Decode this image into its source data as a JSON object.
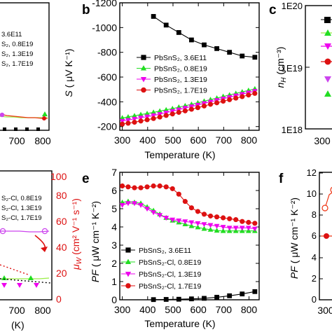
{
  "colors": {
    "black": "#000000",
    "green": "#22dd22",
    "magenta": "#ee00ee",
    "red": "#dd1111",
    "violet": "#cc44ee",
    "light_green": "#99ee44",
    "orange_red": "#ee3311"
  },
  "panels": {
    "a": {
      "x_ticks": [
        "700",
        "800"
      ],
      "legend": [
        "3.6E11",
        "S₂, 0.8E19",
        "S₂, 1.3E19",
        "S₂, 1.7E19"
      ]
    },
    "b": {
      "letter": "b",
      "ylabel_var": "S",
      "ylabel_unit": " ( μV K⁻¹)",
      "xlabel": "Temperature (K)"
    },
    "c": {
      "letter": "c",
      "ylabel_var": "n",
      "ylabel_sub": "H",
      "ylabel_unit": " (cm⁻³)",
      "y_ticks": [
        "1E20",
        "1E19",
        "1E18"
      ],
      "x_tick_partial": "300"
    },
    "d": {
      "x_ticks": [
        "700",
        "800"
      ],
      "xlabel_partial": "(K)",
      "legend": [
        "S₂-Cl, 0.8E19",
        "S₂-Cl, 1.3E19",
        "S₂-Cl, 1.7E19"
      ],
      "right_axis_var": "μ",
      "right_axis_sub": "W",
      "right_axis_unit": " (cm² V⁻¹ s⁻¹)",
      "right_ticks": [
        "0",
        "20",
        "40",
        "60",
        "80",
        "100"
      ]
    },
    "e": {
      "letter": "e",
      "ylabel_var": "PF",
      "ylabel_unit": " ( μW cm⁻¹ K⁻²)",
      "xlabel": "Temperature (K)"
    },
    "f": {
      "letter": "f",
      "ylabel_var": "PF",
      "ylabel_unit": " ( μW cm⁻¹ K⁻²)",
      "y_ticks": [
        "0",
        "2",
        "4",
        "6",
        "8",
        "10",
        "12"
      ],
      "x_tick_partial": "300"
    }
  },
  "chart_data": [
    {
      "panel": "b",
      "type": "line",
      "xlabel": "Temperature (K)",
      "ylabel": "S ( μV K⁻¹)",
      "xlim": [
        290,
        840
      ],
      "ylim": [
        -170,
        -1200
      ],
      "x_ticks": [
        300,
        400,
        500,
        600,
        700,
        800
      ],
      "y_ticks": [
        -200,
        -400,
        -600,
        -800,
        -1000,
        -1200
      ],
      "legend_position": "center-right",
      "series": [
        {
          "name": "PbSnS₂, 3.6E11",
          "color": "#000000",
          "marker": "square",
          "filled": true,
          "x": [
            423,
            473,
            523,
            573,
            623,
            673,
            723,
            773,
            823
          ],
          "y": [
            -1090,
            -1020,
            -960,
            -900,
            -860,
            -830,
            -800,
            -770,
            -760
          ]
        },
        {
          "name": "PbSnS₂, 0.8E19",
          "color": "#22dd22",
          "marker": "triangle-up",
          "filled": true,
          "x": [
            300,
            323,
            348,
            373,
            398,
            423,
            448,
            473,
            498,
            523,
            548,
            573,
            598,
            623,
            648,
            673,
            698,
            723,
            748,
            773,
            798,
            823
          ],
          "y": [
            -270,
            -278,
            -287,
            -297,
            -305,
            -315,
            -325,
            -335,
            -345,
            -357,
            -368,
            -380,
            -392,
            -405,
            -418,
            -430,
            -443,
            -455,
            -468,
            -480,
            -492,
            -505
          ]
        },
        {
          "name": "PbSnS₂, 1.3E19",
          "color": "#ee00ee",
          "marker": "triangle-down",
          "filled": true,
          "x": [
            300,
            323,
            348,
            373,
            398,
            423,
            448,
            473,
            498,
            523,
            548,
            573,
            598,
            623,
            648,
            673,
            698,
            723,
            748,
            773,
            798,
            823
          ],
          "y": [
            -245,
            -252,
            -262,
            -272,
            -280,
            -290,
            -300,
            -312,
            -325,
            -337,
            -350,
            -362,
            -375,
            -388,
            -400,
            -413,
            -425,
            -437,
            -450,
            -462,
            -474,
            -487
          ]
        },
        {
          "name": "PbSnS₂, 1.7E19",
          "color": "#dd1111",
          "marker": "circle",
          "filled": true,
          "x": [
            300,
            323,
            348,
            373,
            398,
            423,
            448,
            473,
            498,
            523,
            548,
            573,
            598,
            623,
            648,
            673,
            698,
            723,
            748,
            773,
            798,
            823
          ],
          "y": [
            -220,
            -227,
            -235,
            -245,
            -255,
            -265,
            -277,
            -290,
            -302,
            -315,
            -327,
            -340,
            -353,
            -366,
            -380,
            -392,
            -405,
            -417,
            -430,
            -442,
            -455,
            -468
          ]
        }
      ]
    },
    {
      "panel": "e",
      "type": "line",
      "xlabel": "Temperature (K)",
      "ylabel": "PF ( μW cm⁻¹ K⁻²)",
      "xlim": [
        290,
        840
      ],
      "ylim": [
        0,
        7
      ],
      "x_ticks": [
        300,
        400,
        500,
        600,
        700,
        800
      ],
      "y_ticks": [
        0,
        1,
        2,
        3,
        4,
        5,
        6,
        7
      ],
      "legend_position": "lower-left",
      "series": [
        {
          "name": "PbSnS₂, 3.6E11",
          "color": "#000000",
          "marker": "square",
          "filled": true,
          "x": [
            423,
            473,
            523,
            573,
            623,
            673,
            723,
            773,
            823
          ],
          "y": [
            0.01,
            0.02,
            0.03,
            0.05,
            0.08,
            0.14,
            0.22,
            0.32,
            0.45
          ]
        },
        {
          "name": "PbSnS₂-Cl, 0.8E19",
          "color": "#22dd22",
          "marker": "triangle-up",
          "filled": true,
          "x": [
            300,
            323,
            348,
            373,
            398,
            423,
            448,
            473,
            498,
            523,
            548,
            573,
            598,
            623,
            648,
            673,
            698,
            723,
            748,
            773,
            798,
            823
          ],
          "y": [
            5.35,
            5.4,
            5.35,
            5.3,
            5.1,
            4.9,
            4.7,
            4.5,
            4.35,
            4.25,
            4.15,
            4.05,
            3.98,
            3.9,
            3.85,
            3.8,
            3.78,
            3.78,
            3.78,
            3.78,
            3.78,
            3.78
          ]
        },
        {
          "name": "PbSnS₂-Cl, 1.3E19",
          "color": "#ee00ee",
          "marker": "triangle-down",
          "filled": true,
          "x": [
            300,
            323,
            348,
            373,
            398,
            423,
            448,
            473,
            498,
            523,
            548,
            573,
            598,
            623,
            648,
            673,
            698,
            723,
            748,
            773,
            798,
            823
          ],
          "y": [
            5.2,
            5.3,
            5.3,
            5.2,
            5.0,
            4.8,
            4.65,
            4.5,
            4.4,
            4.35,
            4.3,
            4.25,
            4.2,
            4.15,
            4.1,
            4.05,
            4.0,
            3.95,
            3.95,
            3.95,
            3.95,
            3.9
          ]
        },
        {
          "name": "PbSnS₂-Cl, 1.7E19",
          "color": "#dd1111",
          "marker": "circle",
          "filled": true,
          "x": [
            300,
            323,
            348,
            373,
            398,
            423,
            448,
            473,
            498,
            523,
            548,
            573,
            598,
            623,
            648,
            673,
            698,
            723,
            748,
            773,
            798,
            823
          ],
          "y": [
            6.25,
            6.2,
            6.15,
            6.15,
            6.2,
            6.25,
            6.25,
            6.2,
            6.1,
            5.8,
            5.4,
            5.05,
            4.85,
            4.7,
            4.6,
            4.55,
            4.5,
            4.45,
            4.4,
            4.3,
            4.25,
            4.2
          ]
        }
      ]
    }
  ]
}
